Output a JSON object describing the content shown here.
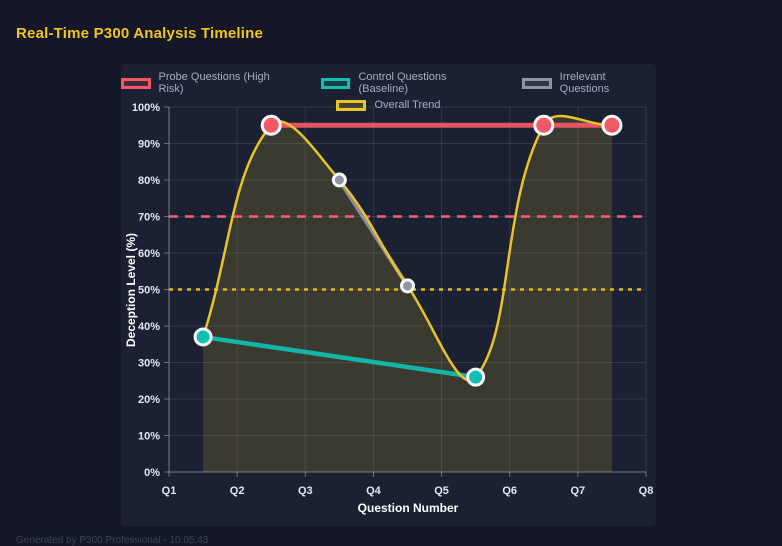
{
  "page": {
    "footer": "Generated by P300 Professional - 10:05:43"
  },
  "colors": {
    "background": "#131727",
    "panel": "#1b2033",
    "title_accent": "#f2c51d",
    "axis_text": "#e4e8f4",
    "legend_text": "#a6acc3",
    "grid": "rgba(255,255,255,0.10)",
    "axis_line": "rgba(255,255,255,0.35)",
    "point_border": "#f6f8fd"
  },
  "chart_data": {
    "type": "line",
    "title": "Real-Time P300 Analysis Timeline",
    "xlabel": "Question Number",
    "ylabel": "Deception Level (%)",
    "x_tick_labels": [
      "Q1",
      "Q2",
      "Q3",
      "Q4",
      "Q5",
      "Q6",
      "Q7",
      "Q8"
    ],
    "y_tick_labels": [
      "0%",
      "10%",
      "20%",
      "30%",
      "40%",
      "50%",
      "60%",
      "70%",
      "80%",
      "90%",
      "100%"
    ],
    "y_tick_values": [
      0,
      10,
      20,
      30,
      40,
      50,
      60,
      70,
      80,
      90,
      100
    ],
    "xlim": [
      1,
      8
    ],
    "ylim": [
      0,
      100
    ],
    "grid": true,
    "legend_position": "top",
    "series": [
      {
        "name": "Probe Questions (High Risk)",
        "id": "probe",
        "color": "#f45865",
        "x": [
          2.5,
          6.5,
          7.5
        ],
        "values": [
          95,
          95,
          95
        ],
        "line_width": 5,
        "point_radius": 9,
        "smooth": false,
        "fill": false
      },
      {
        "name": "Control Questions (Baseline)",
        "id": "control",
        "color": "#0fc0b3",
        "x": [
          1.5,
          5.5
        ],
        "values": [
          37,
          26
        ],
        "line_width": 4.5,
        "point_radius": 8,
        "smooth": false,
        "fill": false
      },
      {
        "name": "Irrelevant Questions",
        "id": "irrelevant",
        "color": "#8f95a3",
        "x": [
          3.5,
          4.5
        ],
        "values": [
          80,
          51
        ],
        "line_width": 4,
        "point_radius": 6,
        "smooth": false,
        "fill": false
      },
      {
        "name": "Overall Trend",
        "id": "trend",
        "color": "#e8c427",
        "x": [
          1.5,
          2.5,
          3.5,
          4.5,
          5.5,
          6.5,
          7.5
        ],
        "values": [
          37,
          95,
          80,
          51,
          26,
          95,
          95
        ],
        "line_width": 2.5,
        "point_radius": 0,
        "smooth": true,
        "fill": true,
        "fill_color": "rgba(232,196,39,0.16)"
      }
    ],
    "thresholds": [
      {
        "name": "high-risk-threshold",
        "value": 70,
        "color": "#fb5c78",
        "dash": [
          9,
          7
        ],
        "width": 2.5
      },
      {
        "name": "baseline-threshold",
        "value": 50,
        "color": "#e8b91c",
        "dash": [
          4,
          5
        ],
        "width": 2.5
      }
    ]
  }
}
